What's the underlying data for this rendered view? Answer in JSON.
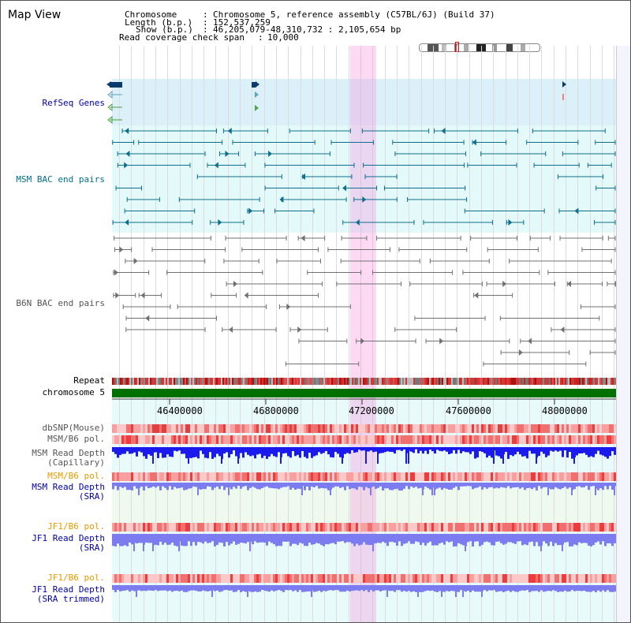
{
  "window_title": "Map View",
  "info": {
    "chromosome_key": "Chromosome",
    "chromosome_value": "Chromosome 5, reference assembly (C57BL/6J) (Build 37)",
    "length_key": "Length (b.p.)",
    "length_value": "152,537,259",
    "show_key": "Show (b.p.)",
    "show_value": "46,205,079-48,310,732 : 2,105,654 bp",
    "coverage_key": "Read coverage check span",
    "coverage_value": "10,000"
  },
  "tracks": {
    "refseq": "RefSeq Genes",
    "msm_bac": "MSM BAC end pairs",
    "b6n_bac": "B6N BAC end pairs",
    "repeat": "Repeat",
    "chromosome": "chromosome 5",
    "dbsnp": "dbSNP(Mouse)",
    "msm_b6_pol_1": "MSM/B6 pol.",
    "msm_read_depth_cap_1": "MSM Read Depth",
    "msm_read_depth_cap_2": "(Capillary)",
    "msm_b6_pol_2": "MSM/B6 pol.",
    "msm_read_depth_sra_1": "MSM Read Depth",
    "msm_read_depth_sra_2": "(SRA)",
    "jf1_b6_pol_1": "JF1/B6 pol.",
    "jf1_read_depth_sra_1": "JF1 Read Depth",
    "jf1_read_depth_sra_2": "(SRA)",
    "jf1_b6_pol_2": "JF1/B6 pol.",
    "jf1_read_depth_trim_1": "JF1 Read Depth",
    "jf1_read_depth_trim_2": "(SRA trimmed)"
  },
  "axis": {
    "ticks": [
      "46400000",
      "46800000",
      "47200000",
      "47600000",
      "48000000"
    ]
  },
  "colors": {
    "refseq_bg": "#dcf0fa",
    "msm_bg": "#e4fafa",
    "b6n_bg": "#ffffff",
    "lower_bg": "#e8fafa",
    "chromosome_bar": "#007000",
    "highlight": "#f58cdc",
    "msm_feature": "#0c6e8c",
    "b6n_feature": "#707070",
    "depth_dark": "#1a1aee",
    "depth_light": "#7c7cf0",
    "pol_red": "#ee3b3b"
  }
}
